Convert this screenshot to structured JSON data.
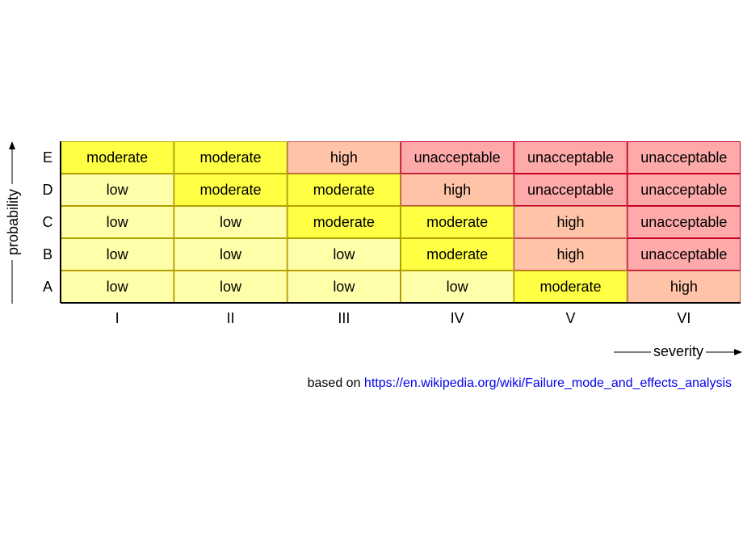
{
  "matrix": {
    "rows": [
      {
        "label": "E",
        "cells": [
          "moderate",
          "moderate",
          "high",
          "unacceptable",
          "unacceptable",
          "unacceptable"
        ]
      },
      {
        "label": "D",
        "cells": [
          "low",
          "moderate",
          "moderate",
          "high",
          "unacceptable",
          "unacceptable"
        ]
      },
      {
        "label": "C",
        "cells": [
          "low",
          "low",
          "moderate",
          "moderate",
          "high",
          "unacceptable"
        ]
      },
      {
        "label": "B",
        "cells": [
          "low",
          "low",
          "low",
          "moderate",
          "high",
          "unacceptable"
        ]
      },
      {
        "label": "A",
        "cells": [
          "low",
          "low",
          "low",
          "low",
          "moderate",
          "high"
        ]
      }
    ],
    "columns": [
      "I",
      "II",
      "III",
      "IV",
      "V",
      "VI"
    ],
    "y_axis_label": "probability",
    "x_axis_label": "severity",
    "colors": {
      "low": "#ffffaa",
      "moderate": "#ffff44",
      "high": "#ffc4a8",
      "unacceptable": "#ffaaaa"
    },
    "borders": {
      "low": "#b4a000",
      "moderate": "#b4a000",
      "high": "#c85050",
      "unacceptable": "#c80028"
    }
  },
  "footer": {
    "prefix": "based on",
    "link": "https://en.wikipedia.org/wiki/Failure_mode_and_effects_analysis"
  }
}
